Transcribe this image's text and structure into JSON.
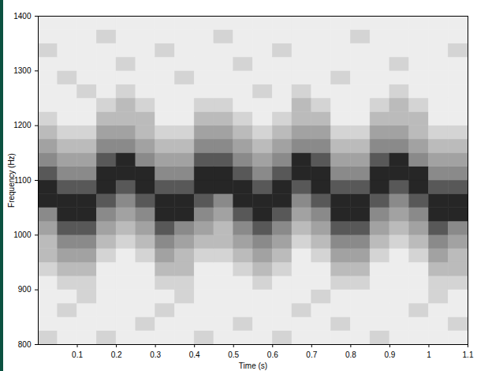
{
  "chart_data": {
    "type": "heatmap",
    "x_label": "Time (s)",
    "y_label": "Frequency (Hz)",
    "xlim": [
      0,
      1.1
    ],
    "ylim": [
      800,
      1400
    ],
    "xticks": [
      0.1,
      0.2,
      0.3,
      0.4,
      0.5,
      0.6,
      0.7,
      0.8,
      0.9,
      1,
      1.1
    ],
    "yticks": [
      800,
      900,
      1000,
      1100,
      1200,
      1300,
      1400
    ],
    "x_bins": [
      0,
      0.05,
      0.1,
      0.15,
      0.2,
      0.25,
      0.3,
      0.35,
      0.4,
      0.45,
      0.5,
      0.55,
      0.6,
      0.65,
      0.7,
      0.75,
      0.8,
      0.85,
      0.9,
      0.95,
      1,
      1.05,
      1.1
    ],
    "y_bins": [
      800,
      825,
      850,
      875,
      900,
      925,
      950,
      975,
      1000,
      1025,
      1050,
      1075,
      1100,
      1125,
      1150,
      1175,
      1200,
      1225,
      1250,
      1275,
      1300,
      1325,
      1350,
      1375,
      1400
    ],
    "cells": [
      [
        2,
        1,
        1,
        2,
        1,
        1,
        1,
        1,
        2,
        1,
        1,
        1,
        2,
        1,
        1,
        1,
        1,
        2,
        1,
        1,
        1,
        1
      ],
      [
        1,
        1,
        1,
        1,
        1,
        2,
        1,
        1,
        1,
        1,
        2,
        1,
        1,
        1,
        1,
        2,
        1,
        1,
        1,
        1,
        1,
        2
      ],
      [
        1,
        2,
        1,
        1,
        1,
        1,
        2,
        1,
        1,
        1,
        1,
        1,
        1,
        2,
        1,
        1,
        1,
        1,
        1,
        2,
        1,
        1
      ],
      [
        1,
        1,
        2,
        1,
        1,
        1,
        1,
        2,
        1,
        1,
        1,
        1,
        1,
        1,
        2,
        1,
        1,
        1,
        1,
        1,
        2,
        1
      ],
      [
        1,
        2,
        2,
        1,
        1,
        1,
        2,
        2,
        1,
        1,
        1,
        2,
        1,
        1,
        1,
        2,
        2,
        1,
        1,
        1,
        2,
        2
      ],
      [
        2,
        3,
        3,
        1,
        1,
        1,
        3,
        3,
        1,
        1,
        2,
        3,
        2,
        1,
        1,
        3,
        3,
        1,
        1,
        1,
        3,
        3
      ],
      [
        3,
        4,
        4,
        2,
        1,
        2,
        4,
        3,
        2,
        2,
        3,
        4,
        3,
        1,
        2,
        4,
        4,
        2,
        1,
        2,
        4,
        3
      ],
      [
        3,
        5,
        5,
        3,
        2,
        3,
        5,
        4,
        3,
        3,
        4,
        5,
        4,
        2,
        3,
        5,
        5,
        3,
        2,
        3,
        5,
        4
      ],
      [
        4,
        7,
        7,
        4,
        3,
        4,
        7,
        5,
        4,
        3,
        5,
        7,
        5,
        3,
        4,
        7,
        7,
        4,
        3,
        4,
        7,
        5
      ],
      [
        5,
        9,
        9,
        5,
        4,
        5,
        9,
        9,
        5,
        4,
        7,
        9,
        7,
        4,
        5,
        9,
        9,
        5,
        4,
        5,
        9,
        9
      ],
      [
        9,
        9,
        9,
        7,
        5,
        7,
        9,
        9,
        7,
        5,
        9,
        9,
        9,
        5,
        7,
        9,
        9,
        7,
        5,
        7,
        9,
        9
      ],
      [
        9,
        7,
        7,
        9,
        7,
        9,
        7,
        7,
        9,
        9,
        9,
        7,
        9,
        7,
        9,
        7,
        7,
        9,
        7,
        9,
        7,
        7
      ],
      [
        7,
        5,
        5,
        9,
        9,
        9,
        5,
        5,
        9,
        9,
        7,
        5,
        7,
        9,
        9,
        5,
        5,
        9,
        9,
        9,
        5,
        5
      ],
      [
        5,
        4,
        4,
        7,
        9,
        5,
        4,
        4,
        7,
        7,
        5,
        4,
        5,
        9,
        7,
        4,
        4,
        7,
        9,
        5,
        4,
        4
      ],
      [
        4,
        3,
        3,
        5,
        5,
        4,
        3,
        3,
        5,
        5,
        4,
        3,
        4,
        5,
        5,
        3,
        3,
        5,
        5,
        4,
        3,
        3
      ],
      [
        3,
        2,
        2,
        4,
        4,
        3,
        2,
        2,
        4,
        4,
        3,
        2,
        3,
        4,
        4,
        2,
        2,
        4,
        4,
        3,
        2,
        2
      ],
      [
        2,
        1,
        1,
        3,
        3,
        3,
        1,
        1,
        3,
        3,
        2,
        1,
        2,
        3,
        3,
        1,
        1,
        3,
        3,
        3,
        1,
        1
      ],
      [
        1,
        1,
        1,
        2,
        3,
        2,
        1,
        1,
        2,
        2,
        1,
        1,
        1,
        3,
        2,
        1,
        1,
        2,
        3,
        2,
        1,
        1
      ],
      [
        1,
        1,
        2,
        1,
        2,
        1,
        1,
        1,
        1,
        1,
        1,
        2,
        1,
        2,
        1,
        1,
        1,
        1,
        2,
        1,
        1,
        1
      ],
      [
        1,
        2,
        1,
        1,
        1,
        1,
        1,
        2,
        1,
        1,
        1,
        1,
        1,
        1,
        1,
        2,
        1,
        1,
        1,
        1,
        1,
        1
      ],
      [
        1,
        1,
        1,
        1,
        2,
        1,
        1,
        1,
        1,
        1,
        2,
        1,
        1,
        1,
        1,
        1,
        1,
        1,
        2,
        1,
        1,
        1
      ],
      [
        2,
        1,
        1,
        1,
        1,
        1,
        2,
        1,
        1,
        1,
        1,
        1,
        2,
        1,
        1,
        1,
        1,
        1,
        1,
        1,
        1,
        2
      ],
      [
        1,
        1,
        1,
        2,
        1,
        1,
        1,
        1,
        1,
        2,
        1,
        1,
        1,
        1,
        1,
        1,
        2,
        1,
        1,
        1,
        1,
        1
      ],
      [
        1,
        1,
        1,
        1,
        1,
        1,
        1,
        1,
        1,
        1,
        1,
        1,
        1,
        1,
        1,
        1,
        1,
        1,
        1,
        1,
        1,
        1
      ]
    ]
  }
}
